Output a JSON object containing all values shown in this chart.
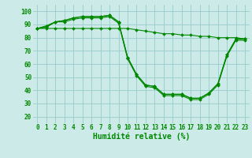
{
  "background_color": "#cceae7",
  "grid_color": "#99cccc",
  "line_color": "#008800",
  "marker_color": "#008800",
  "xlabel": "Humidité relative (%)",
  "xlabel_fontsize": 7,
  "tick_fontsize": 5.5,
  "xlim": [
    -0.5,
    23.5
  ],
  "ylim": [
    15,
    105
  ],
  "yticks": [
    20,
    30,
    40,
    50,
    60,
    70,
    80,
    90,
    100
  ],
  "xticks": [
    0,
    1,
    2,
    3,
    4,
    5,
    6,
    7,
    8,
    9,
    10,
    11,
    12,
    13,
    14,
    15,
    16,
    17,
    18,
    19,
    20,
    21,
    22,
    23
  ],
  "series": [
    [
      87,
      89,
      92,
      93,
      95,
      96,
      96,
      96,
      97,
      92,
      65,
      52,
      44,
      43,
      37,
      37,
      37,
      34,
      34,
      38,
      45,
      67,
      79,
      79
    ],
    [
      87,
      88,
      92,
      93,
      95,
      96,
      96,
      96,
      97,
      92,
      65,
      52,
      44,
      43,
      37,
      37,
      37,
      34,
      34,
      38,
      45,
      67,
      79,
      79
    ],
    [
      87,
      88,
      92,
      92,
      94,
      95,
      95,
      95,
      96,
      91,
      64,
      51,
      43,
      42,
      36,
      36,
      36,
      33,
      33,
      37,
      44,
      66,
      78,
      78
    ],
    [
      87,
      87,
      87,
      87,
      87,
      87,
      87,
      87,
      87,
      87,
      87,
      86,
      85,
      84,
      83,
      83,
      82,
      82,
      81,
      81,
      80,
      80,
      80,
      79
    ]
  ]
}
